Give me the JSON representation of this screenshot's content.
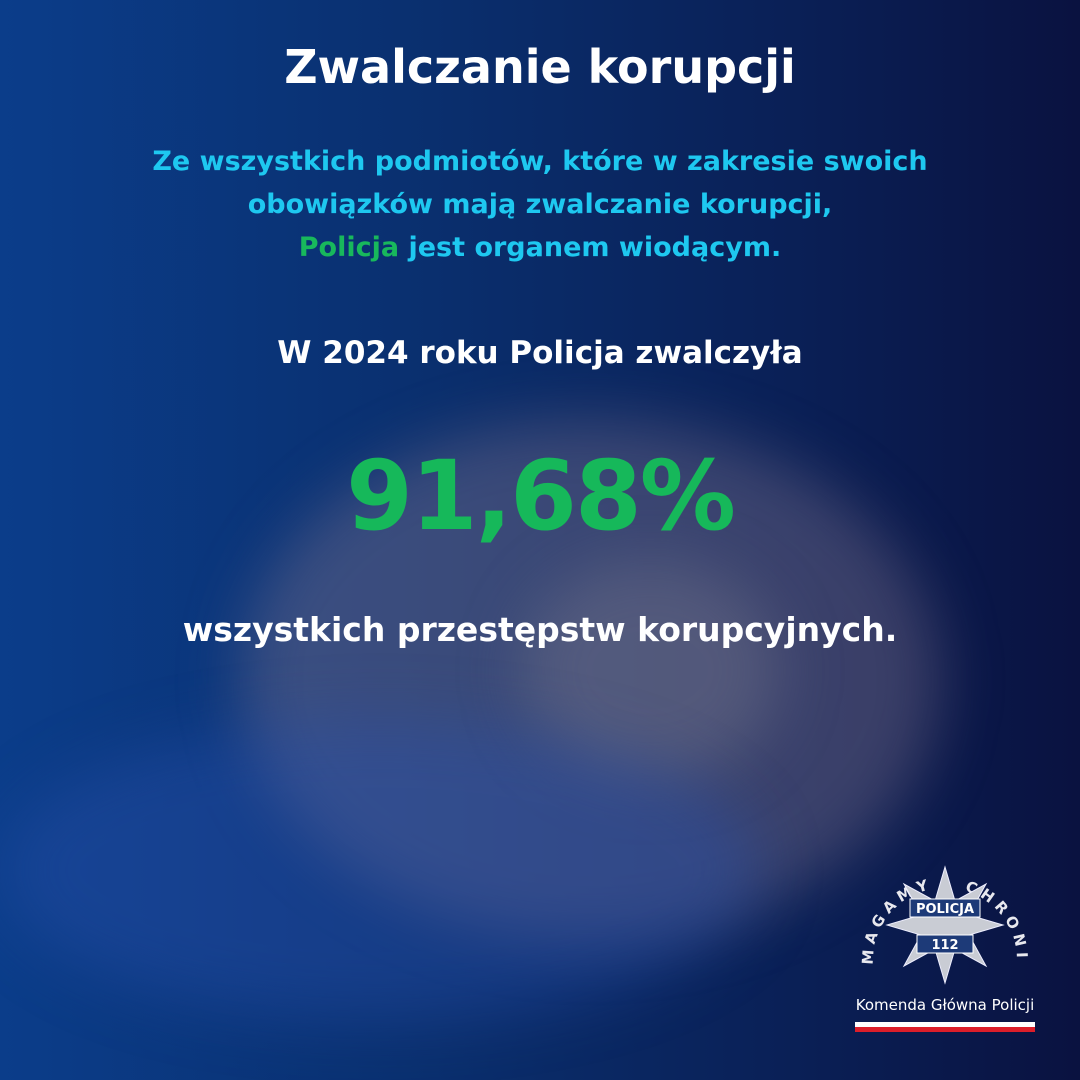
{
  "title": "Zwalczanie korupcji",
  "lead": {
    "line1": "Ze wszystkich podmiotów, które w zakresie swoich",
    "line2": "obowiązków mają zwalczanie korupcji,",
    "highlight": "Policja",
    "line3_rest": " jest organem wiodącym."
  },
  "subtitle": "W 2024 roku Policja zwalczyła",
  "stat": "91,68%",
  "stat_caption": "wszystkich przestępstw korupcyjnych.",
  "logo": {
    "motto": "POMAGAMY I CHRONIMY",
    "badge_top": "POLICJA",
    "badge_number": "112",
    "organization": "Komenda Główna Policji"
  },
  "colors": {
    "background": "#0a2f6e",
    "accent_cyan": "#1ec8f0",
    "accent_green": "#16b85a",
    "text": "#ffffff",
    "flag_white": "#ffffff",
    "flag_red": "#dc1e2a"
  }
}
